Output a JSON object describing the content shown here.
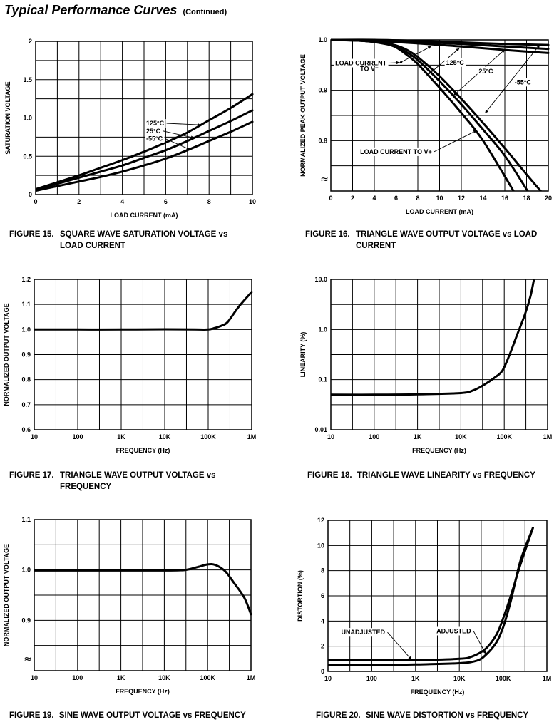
{
  "page": {
    "title": "Typical Performance Curves",
    "subtitle": "(Continued)"
  },
  "chart_data": [
    {
      "id": "fig15",
      "type": "line",
      "figure_label": "FIGURE 15.",
      "caption_line1": "SQUARE WAVE SATURATION VOLTAGE vs",
      "caption_line2": "LOAD CURRENT",
      "xlabel": "LOAD CURRENT (mA)",
      "ylabel": "SATURATION VOLTAGE",
      "xscale": "linear",
      "yscale": "linear",
      "xlim": [
        0,
        10
      ],
      "ylim": [
        0,
        2
      ],
      "xticks": [
        0,
        2,
        4,
        6,
        8,
        10
      ],
      "xtick_labels": [
        "0",
        "2",
        "4",
        "6",
        "8",
        "10"
      ],
      "yticks": [
        0,
        0.5,
        1.0,
        1.5,
        2
      ],
      "ytick_labels": [
        "0",
        "0.5",
        "1.0",
        "1.5",
        "2"
      ],
      "xgrid": [
        0,
        1,
        2,
        3,
        4,
        5,
        6,
        7,
        8,
        9,
        10
      ],
      "ygrid": [
        0,
        0.25,
        0.5,
        0.75,
        1.0,
        1.25,
        1.5,
        1.75,
        2.0
      ],
      "grid": true,
      "series": [
        {
          "name": "125°C",
          "x": [
            0,
            1,
            2,
            3,
            4,
            5,
            6,
            7,
            8,
            9,
            10
          ],
          "y": [
            0.07,
            0.16,
            0.25,
            0.35,
            0.45,
            0.56,
            0.68,
            0.81,
            0.97,
            1.13,
            1.31
          ]
        },
        {
          "name": "25°C",
          "x": [
            0,
            1,
            2,
            3,
            4,
            5,
            6,
            7,
            8,
            9,
            10
          ],
          "y": [
            0.06,
            0.14,
            0.22,
            0.3,
            0.38,
            0.48,
            0.58,
            0.7,
            0.83,
            0.96,
            1.1
          ]
        },
        {
          "name": "-55°C",
          "x": [
            0,
            1,
            2,
            3,
            4,
            5,
            6,
            7,
            8,
            9,
            10
          ],
          "y": [
            0.05,
            0.11,
            0.17,
            0.23,
            0.3,
            0.38,
            0.47,
            0.58,
            0.7,
            0.82,
            0.95
          ]
        }
      ],
      "annotations": [
        {
          "text": "125°C",
          "at": [
            5.1,
            0.93
          ],
          "arrow_to": [
            7.6,
            0.91
          ],
          "bg": true
        },
        {
          "text": "25°C",
          "at": [
            5.1,
            0.83
          ],
          "arrow_to": [
            7.3,
            0.74
          ],
          "bg": true
        },
        {
          "text": "-55°C",
          "at": [
            5.1,
            0.73
          ],
          "arrow_to": [
            7.1,
            0.59
          ],
          "bg": true
        }
      ]
    },
    {
      "id": "fig16",
      "type": "line",
      "figure_label": "FIGURE 16.",
      "caption_line1": "TRIANGLE WAVE OUTPUT VOLTAGE vs LOAD",
      "caption_line2": "CURRENT",
      "xlabel": "LOAD CURRENT (mA)",
      "ylabel": "NORMALIZED PEAK OUTPUT VOLTAGE",
      "xscale": "linear",
      "yscale": "linear",
      "xlim": [
        0,
        20
      ],
      "ylim": [
        0.7,
        1.0
      ],
      "axis_break": "≈",
      "xticks": [
        0,
        2,
        4,
        6,
        8,
        10,
        12,
        14,
        16,
        18,
        20
      ],
      "xtick_labels": [
        "0",
        "2",
        "4",
        "6",
        "8",
        "10",
        "12",
        "14",
        "16",
        "18",
        "20"
      ],
      "yticks": [
        0.8,
        0.9,
        1.0
      ],
      "ytick_labels": [
        "0.8",
        "0.9",
        "1.0"
      ],
      "xgrid": [
        0,
        2,
        4,
        6,
        8,
        10,
        12,
        14,
        16,
        18,
        20
      ],
      "ygrid": [
        0.7,
        0.75,
        0.8,
        0.85,
        0.9,
        0.95,
        1.0
      ],
      "grid": true,
      "series": [
        {
          "name": "125°C to V-",
          "x": [
            0,
            4,
            8,
            12,
            16,
            20
          ],
          "y": [
            1.0,
            0.998,
            0.993,
            0.987,
            0.98,
            0.974
          ]
        },
        {
          "name": "25°C to V-",
          "x": [
            0,
            4,
            8,
            12,
            16,
            20
          ],
          "y": [
            1.0,
            0.999,
            0.996,
            0.992,
            0.987,
            0.982
          ]
        },
        {
          "name": "-55°C to V-",
          "x": [
            0,
            4,
            8,
            12,
            16,
            20
          ],
          "y": [
            1.0,
            1.0,
            0.998,
            0.995,
            0.992,
            0.99
          ]
        },
        {
          "name": "125°C to V+",
          "x": [
            0,
            3,
            5,
            6,
            7,
            8,
            10,
            12,
            14,
            16.8
          ],
          "y": [
            1.0,
            0.998,
            0.992,
            0.985,
            0.97,
            0.952,
            0.905,
            0.855,
            0.8,
            0.7
          ]
        },
        {
          "name": "25°C to V+",
          "x": [
            0,
            3,
            5,
            6,
            7,
            8,
            10,
            12,
            14,
            16,
            18.1
          ],
          "y": [
            1.0,
            0.998,
            0.993,
            0.987,
            0.975,
            0.96,
            0.918,
            0.872,
            0.822,
            0.77,
            0.7
          ]
        },
        {
          "name": "-55°C to V+",
          "x": [
            0,
            3,
            5,
            6,
            7,
            8,
            10,
            12,
            14,
            16,
            18,
            19.3
          ],
          "y": [
            1.0,
            0.998,
            0.994,
            0.989,
            0.98,
            0.966,
            0.928,
            0.883,
            0.835,
            0.785,
            0.733,
            0.7
          ]
        }
      ],
      "annotations": [
        {
          "text": "LOAD CURRENT",
          "at": [
            0.4,
            0.954
          ],
          "arrow_to": [
            6.3,
            0.955
          ],
          "bg": true
        },
        {
          "text": "TO V⁻",
          "at": [
            2.7,
            0.943
          ],
          "bg": false
        },
        {
          "text": "125°C",
          "at": [
            10.6,
            0.955
          ],
          "bg": true
        },
        {
          "text": "25°C",
          "at": [
            13.6,
            0.938
          ],
          "bg": true
        },
        {
          "text": "-55°C",
          "at": [
            16.9,
            0.916
          ],
          "bg": true
        },
        {
          "text": "LOAD CURRENT TO V+",
          "at": [
            2.7,
            0.778
          ],
          "arrow_to": [
            13.4,
            0.82
          ],
          "bg": true
        }
      ],
      "double_arrows": [
        [
          [
            6.3,
            0.954
          ],
          [
            9.2,
            0.987
          ]
        ],
        [
          [
            8.8,
            0.928
          ],
          [
            11.8,
            0.983
          ]
        ],
        [
          [
            11.3,
            0.89
          ],
          [
            16.0,
            0.981
          ]
        ],
        [
          [
            14.2,
            0.855
          ],
          [
            19.2,
            0.99
          ]
        ]
      ]
    },
    {
      "id": "fig17",
      "type": "line",
      "figure_label": "FIGURE 17.",
      "caption_line1": "TRIANGLE WAVE OUTPUT VOLTAGE vs",
      "caption_line2": "FREQUENCY",
      "xlabel": "FREQUENCY (Hz)",
      "ylabel": "NORMALIZED OUTPUT VOLTAGE",
      "xscale": "log",
      "yscale": "linear",
      "xlim": [
        10,
        1000000
      ],
      "ylim": [
        0.6,
        1.2
      ],
      "xticks": [
        10,
        100,
        1000,
        10000,
        100000,
        1000000
      ],
      "xtick_labels": [
        "10",
        "100",
        "1K",
        "10K",
        "100K",
        "1M"
      ],
      "yticks": [
        0.6,
        0.7,
        0.8,
        0.9,
        1.0,
        1.1,
        1.2
      ],
      "ytick_labels": [
        "0.6",
        "0.7",
        "0.8",
        "0.9",
        "1.0",
        "1.1",
        "1.2"
      ],
      "xgrid": [
        10,
        31.6,
        100,
        316,
        1000,
        3160,
        10000,
        31600,
        100000,
        316000,
        1000000
      ],
      "ygrid": [
        0.6,
        0.7,
        0.8,
        0.9,
        1.0,
        1.1,
        1.2
      ],
      "grid": true,
      "series": [
        {
          "name": "Output",
          "x": [
            10,
            100,
            1000,
            10000,
            50000,
            100000,
            130000,
            200000,
            280000,
            500000,
            1000000
          ],
          "y": [
            1.0,
            1.0,
            1.0,
            1.001,
            1.0,
            1.0,
            1.004,
            1.015,
            1.03,
            1.09,
            1.15
          ]
        }
      ],
      "annotations": []
    },
    {
      "id": "fig18",
      "type": "line",
      "figure_label": "FIGURE 18.",
      "caption_line1": "TRIANGLE WAVE LINEARITY vs FREQUENCY",
      "caption_line2": "",
      "xlabel": "FREQUENCY (Hz)",
      "ylabel": "LINEARITY (%)",
      "xscale": "log",
      "yscale": "log",
      "xlim": [
        10,
        1000000
      ],
      "ylim": [
        0.01,
        10
      ],
      "xticks": [
        10,
        100,
        1000,
        10000,
        100000,
        1000000
      ],
      "xtick_labels": [
        "10",
        "100",
        "1K",
        "10K",
        "100K",
        "1M"
      ],
      "yticks": [
        0.01,
        0.1,
        1.0,
        10.0
      ],
      "ytick_labels": [
        "0.01",
        "0.1",
        "1.0",
        "10.0"
      ],
      "xgrid": [
        10,
        31.6,
        100,
        316,
        1000,
        3160,
        10000,
        31600,
        100000,
        316000,
        1000000
      ],
      "ygrid": [
        0.01,
        0.0316,
        0.1,
        0.316,
        1.0,
        3.16,
        10.0
      ],
      "grid": true,
      "series": [
        {
          "name": "Linearity",
          "x": [
            10,
            100,
            1000,
            10000,
            20000,
            35000,
            60000,
            90000,
            130000,
            200000,
            300000,
            400000,
            480000
          ],
          "y": [
            0.05,
            0.05,
            0.051,
            0.054,
            0.062,
            0.08,
            0.11,
            0.15,
            0.3,
            0.8,
            2.0,
            4.5,
            9.5
          ]
        }
      ],
      "annotations": []
    },
    {
      "id": "fig19",
      "type": "line",
      "figure_label": "FIGURE 19.",
      "caption_line1": "SINE WAVE OUTPUT VOLTAGE vs FREQUENCY",
      "caption_line2": "",
      "xlabel": "FREQUENCY (Hz)",
      "ylabel": "NORMALIZED OUTPUT VOLTAGE",
      "xscale": "log",
      "yscale": "linear",
      "xlim": [
        10,
        1000000
      ],
      "ylim": [
        0.8,
        1.1
      ],
      "axis_break": "≈",
      "xticks": [
        10,
        100,
        1000,
        10000,
        100000,
        1000000
      ],
      "xtick_labels": [
        "10",
        "100",
        "1K",
        "10K",
        "100K",
        "1M"
      ],
      "yticks": [
        0.9,
        1.0,
        1.1
      ],
      "ytick_labels": [
        "0.9",
        "1.0",
        "1.1"
      ],
      "xgrid": [
        10,
        31.6,
        100,
        316,
        1000,
        3160,
        10000,
        31600,
        100000,
        316000,
        1000000
      ],
      "ygrid": [
        0.8,
        0.85,
        0.9,
        0.95,
        1.0,
        1.05,
        1.1
      ],
      "grid": true,
      "series": [
        {
          "name": "Output",
          "x": [
            10,
            100,
            1000,
            10000,
            30000,
            60000,
            100000,
            150000,
            250000,
            400000,
            700000,
            1000000
          ],
          "y": [
            0.999,
            0.999,
            0.999,
            0.999,
            1.0,
            1.006,
            1.011,
            1.01,
            0.998,
            0.975,
            0.945,
            0.912
          ]
        }
      ],
      "annotations": []
    },
    {
      "id": "fig20",
      "type": "line",
      "figure_label": "FIGURE 20.",
      "caption_line1": "SINE WAVE DISTORTION vs FREQUENCY",
      "caption_line2": "",
      "xlabel": "FREQUENCY (Hz)",
      "ylabel": "DISTORTION (%)",
      "xscale": "log",
      "yscale": "linear",
      "xlim": [
        10,
        1000000
      ],
      "ylim": [
        0,
        12
      ],
      "xticks": [
        10,
        100,
        1000,
        10000,
        100000,
        1000000
      ],
      "xtick_labels": [
        "10",
        "100",
        "1K",
        "10K",
        "100K",
        "1M"
      ],
      "yticks": [
        0,
        2,
        4,
        6,
        8,
        10,
        12
      ],
      "ytick_labels": [
        "0",
        "2",
        "4",
        "6",
        "8",
        "10",
        "12"
      ],
      "xgrid": [
        10,
        31.6,
        100,
        316,
        1000,
        3160,
        10000,
        31600,
        100000,
        316000,
        1000000
      ],
      "ygrid": [
        0,
        2,
        4,
        6,
        8,
        10,
        12
      ],
      "grid": true,
      "series": [
        {
          "name": "UNADJUSTED",
          "x": [
            10,
            100,
            1000,
            10000,
            20000,
            40000,
            70000,
            100000,
            150000,
            250000,
            480000
          ],
          "y": [
            0.9,
            0.9,
            0.9,
            1.0,
            1.2,
            1.8,
            2.9,
            4.2,
            6.0,
            8.5,
            11.4
          ]
        },
        {
          "name": "ADJUSTED",
          "x": [
            10,
            100,
            1000,
            10000,
            25000,
            40000,
            70000,
            100000,
            150000,
            250000,
            480000
          ],
          "y": [
            0.5,
            0.5,
            0.55,
            0.65,
            0.85,
            1.3,
            2.3,
            3.5,
            5.6,
            8.8,
            11.4
          ]
        }
      ],
      "annotations": [
        {
          "text": "UNADJUSTED",
          "at": [
            20,
            3.1
          ],
          "arrow_to": [
            800,
            0.95
          ],
          "bg": true
        },
        {
          "text": "ADJUSTED",
          "at": [
            3000,
            3.2
          ],
          "arrow_to": [
            40000,
            1.4
          ],
          "bg": true
        }
      ]
    }
  ]
}
